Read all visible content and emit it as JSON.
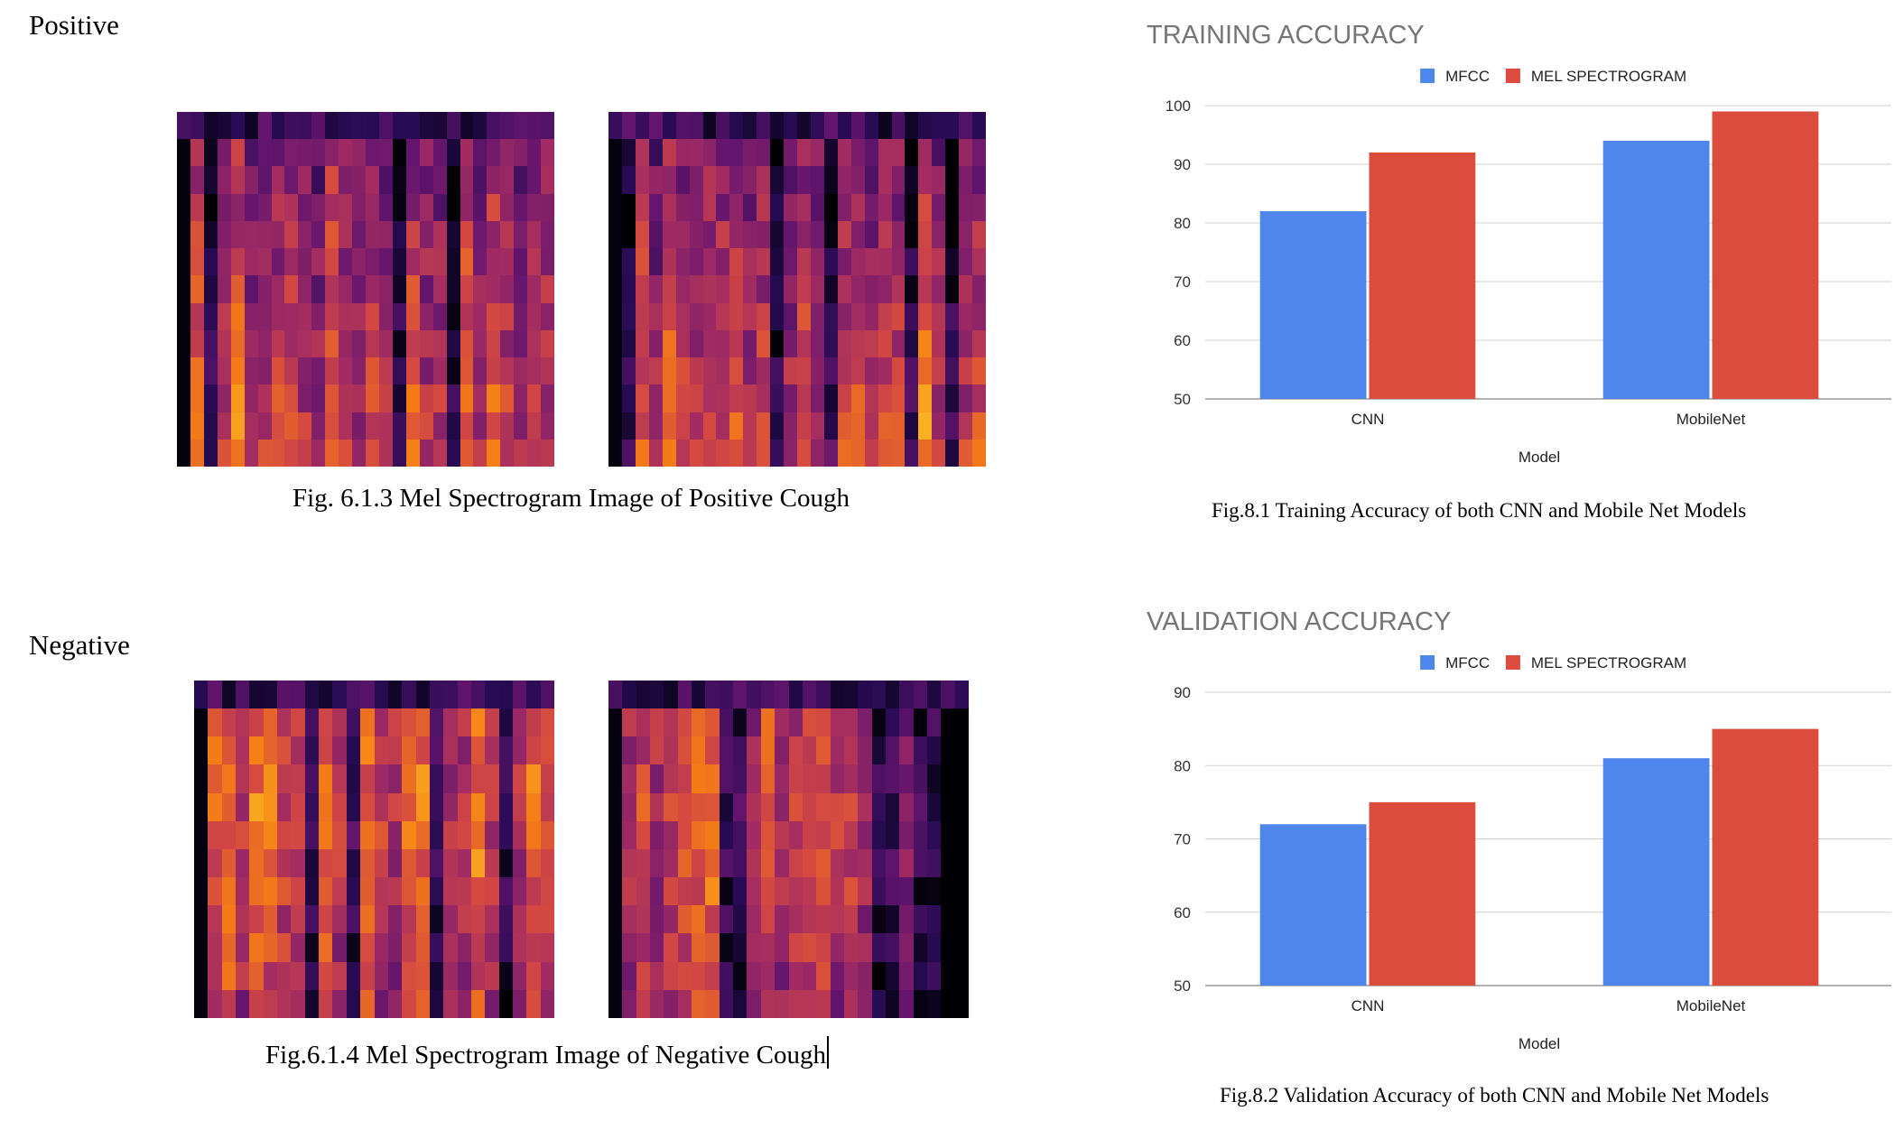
{
  "left": {
    "positive_heading": "Positive",
    "positive_caption": "Fig. 6.1.3 Mel Spectrogram Image of Positive Cough",
    "negative_heading": "Negative",
    "negative_caption": "Fig.6.1.4 Mel Spectrogram Image of Negative Cough"
  },
  "right": {
    "top_caption": "Fig.8.1 Training Accuracy of both CNN and Mobile Net Models",
    "bottom_caption": "Fig.8.2 Validation Accuracy of both CNN and Mobile Net Models"
  },
  "chart_data": [
    {
      "type": "bar",
      "title": "TRAINING ACCURACY",
      "xlabel": "Model",
      "ylabel": "",
      "categories": [
        "CNN",
        "MobileNet"
      ],
      "series": [
        {
          "name": "MFCC",
          "values": [
            82,
            94
          ],
          "color": "#4f86ec"
        },
        {
          "name": "MEL SPECTROGRAM",
          "values": [
            92,
            99
          ],
          "color": "#db4c3f"
        }
      ],
      "ylim": [
        50,
        100
      ],
      "yticks": [
        50,
        60,
        70,
        80,
        90,
        100
      ],
      "grid": true,
      "legend": "top-center"
    },
    {
      "type": "bar",
      "title": "VALIDATION ACCURACY",
      "xlabel": "Model",
      "ylabel": "",
      "categories": [
        "CNN",
        "MobileNet"
      ],
      "series": [
        {
          "name": "MFCC",
          "values": [
            72,
            81
          ],
          "color": "#4f86ec"
        },
        {
          "name": "MEL SPECTROGRAM",
          "values": [
            75,
            85
          ],
          "color": "#db4c3f"
        }
      ],
      "ylim": [
        50,
        90
      ],
      "yticks": [
        50,
        60,
        70,
        80,
        90
      ],
      "grid": true,
      "legend": "top-center"
    }
  ]
}
